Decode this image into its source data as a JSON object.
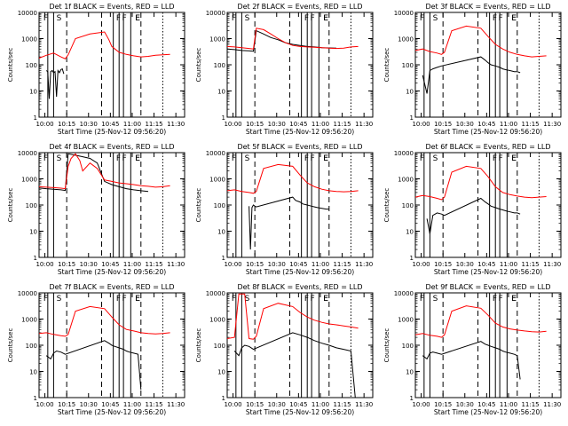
{
  "common": {
    "xlabel": "Start Time (25-Nov-12 09:56:20)",
    "ylabel": "Counts/sec",
    "x_ticks": [
      "10:00",
      "10:15",
      "10:30",
      "10:45",
      "11:00",
      "11:15",
      "11:30"
    ],
    "y_ticks": [
      "1",
      "10",
      "100",
      "1000",
      "10000"
    ],
    "colors": {
      "events": "#000000",
      "lld": "#ff0000"
    }
  },
  "chart_data": [
    {
      "type": "line",
      "title": "Det 1f BLACK = Events, RED = LLD",
      "y_scale": "log",
      "xlim_minutes": [
        0,
        100
      ],
      "ylim": [
        1,
        10000
      ],
      "marker_labels": [
        "F",
        "S",
        "E",
        "F",
        "F",
        "E"
      ],
      "series": [
        {
          "name": "Events",
          "color": "#000000",
          "x": [
            5,
            6,
            7,
            8,
            9,
            10,
            11,
            12,
            13,
            14,
            15,
            16,
            17,
            18,
            19,
            20,
            21,
            22,
            23,
            24,
            25,
            26,
            27,
            28,
            29
          ],
          "values": [
            60,
            55,
            5,
            55,
            60,
            50,
            55,
            6,
            60,
            50,
            65,
            70,
            45,
            null,
            null,
            null,
            null,
            null,
            null,
            null,
            null,
            null,
            null,
            null,
            null
          ]
        },
        {
          "name": "LLD",
          "color": "#ff0000",
          "x": [
            0,
            5,
            10,
            15,
            18,
            20,
            25,
            35,
            45,
            48,
            50,
            55,
            60,
            65,
            70,
            75,
            80,
            85,
            90
          ],
          "values": [
            180,
            230,
            280,
            200,
            170,
            240,
            1000,
            1500,
            1800,
            900,
            500,
            300,
            250,
            220,
            200,
            210,
            230,
            240,
            250
          ]
        }
      ]
    },
    {
      "type": "line",
      "title": "Det 2f BLACK = Events, RED = LLD",
      "y_scale": "log",
      "xlim_minutes": [
        0,
        100
      ],
      "ylim": [
        1,
        10000
      ],
      "marker_labels": [
        "F",
        "S",
        "E",
        "F",
        "F",
        "E"
      ],
      "series": [
        {
          "name": "Events",
          "color": "#000000",
          "x": [
            0,
            5,
            10,
            15,
            18,
            20,
            25,
            30,
            35,
            40,
            45,
            50,
            55,
            60,
            65,
            70,
            75
          ],
          "values": [
            400,
            380,
            350,
            340,
            330,
            2000,
            1500,
            1100,
            900,
            700,
            600,
            550,
            500,
            480,
            450,
            440,
            430
          ]
        },
        {
          "name": "LLD",
          "color": "#ff0000",
          "x": [
            0,
            5,
            10,
            15,
            18,
            20,
            25,
            30,
            35,
            40,
            45,
            50,
            55,
            60,
            65,
            70,
            75,
            80,
            85,
            90
          ],
          "values": [
            500,
            480,
            450,
            420,
            400,
            2500,
            2200,
            1500,
            1000,
            700,
            550,
            500,
            480,
            470,
            450,
            430,
            420,
            430,
            480,
            500
          ]
        }
      ]
    },
    {
      "type": "line",
      "title": "Det 3f BLACK = Events, RED = LLD",
      "y_scale": "log",
      "xlim_minutes": [
        0,
        100
      ],
      "ylim": [
        1,
        10000
      ],
      "marker_labels": [
        "F",
        "S",
        "E",
        "F",
        "F",
        "E"
      ],
      "series": [
        {
          "name": "Events",
          "color": "#000000",
          "x": [
            5,
            8,
            10,
            12,
            15,
            18,
            45,
            48,
            50,
            52,
            55,
            58,
            60,
            62,
            65,
            68,
            70,
            72
          ],
          "values": [
            40,
            8,
            60,
            70,
            80,
            90,
            200,
            150,
            120,
            100,
            90,
            80,
            70,
            65,
            60,
            55,
            55,
            50
          ]
        },
        {
          "name": "LLD",
          "color": "#ff0000",
          "x": [
            0,
            5,
            10,
            15,
            18,
            20,
            25,
            35,
            45,
            50,
            55,
            60,
            65,
            70,
            75,
            80,
            85,
            90
          ],
          "values": [
            350,
            400,
            320,
            280,
            250,
            300,
            2000,
            3000,
            2500,
            1200,
            600,
            400,
            300,
            250,
            220,
            200,
            210,
            220
          ]
        }
      ]
    },
    {
      "type": "line",
      "title": "Det 4f BLACK = Events, RED = LLD",
      "y_scale": "log",
      "xlim_minutes": [
        0,
        100
      ],
      "ylim": [
        1,
        10000
      ],
      "marker_labels": [
        "F",
        "S",
        "E",
        "F",
        "F",
        "E"
      ],
      "series": [
        {
          "name": "Events",
          "color": "#000000",
          "x": [
            0,
            5,
            10,
            15,
            18,
            20,
            25,
            30,
            35,
            40,
            45,
            50,
            55,
            60,
            65,
            70,
            75
          ],
          "values": [
            450,
            420,
            400,
            380,
            360,
            9000,
            8000,
            7000,
            6000,
            4000,
            800,
            600,
            500,
            420,
            380,
            350,
            330
          ]
        },
        {
          "name": "LLD",
          "color": "#ff0000",
          "x": [
            0,
            5,
            10,
            15,
            18,
            20,
            22,
            25,
            28,
            30,
            35,
            40,
            45,
            50,
            55,
            60,
            65,
            70,
            75,
            80,
            85,
            90
          ],
          "values": [
            500,
            480,
            460,
            440,
            420,
            3000,
            6000,
            9000,
            5000,
            2000,
            4000,
            2500,
            900,
            800,
            700,
            650,
            600,
            550,
            520,
            480,
            500,
            550
          ]
        }
      ]
    },
    {
      "type": "line",
      "title": "Det 5f BLACK = Events, RED = LLD",
      "y_scale": "log",
      "xlim_minutes": [
        0,
        100
      ],
      "ylim": [
        1,
        10000
      ],
      "marker_labels": [
        "F",
        "S",
        "E",
        "F",
        "F",
        "E"
      ],
      "series": [
        {
          "name": "Events",
          "color": "#000000",
          "x": [
            15,
            16,
            17,
            18,
            19,
            20,
            45,
            47,
            50,
            52,
            55,
            58,
            60,
            62,
            65,
            68,
            70
          ],
          "values": [
            90,
            2,
            80,
            100,
            90,
            85,
            200,
            150,
            130,
            110,
            100,
            90,
            85,
            80,
            75,
            70,
            70
          ]
        },
        {
          "name": "LLD",
          "color": "#ff0000",
          "x": [
            0,
            5,
            10,
            15,
            18,
            20,
            25,
            35,
            45,
            50,
            55,
            60,
            65,
            70,
            75,
            80,
            85,
            90
          ],
          "values": [
            350,
            380,
            330,
            300,
            280,
            330,
            2500,
            3500,
            3000,
            1400,
            700,
            500,
            400,
            350,
            330,
            320,
            330,
            350
          ]
        }
      ]
    },
    {
      "type": "line",
      "title": "Det 6f BLACK = Events, RED = LLD",
      "y_scale": "log",
      "xlim_minutes": [
        0,
        100
      ],
      "ylim": [
        1,
        10000
      ],
      "marker_labels": [
        "F",
        "S",
        "E",
        "F",
        "F",
        "E"
      ],
      "series": [
        {
          "name": "Events",
          "color": "#000000",
          "x": [
            8,
            10,
            12,
            15,
            18,
            20,
            45,
            48,
            50,
            52,
            55,
            58,
            60,
            62,
            65,
            68,
            70,
            72
          ],
          "values": [
            30,
            8,
            40,
            50,
            45,
            40,
            180,
            130,
            110,
            90,
            80,
            70,
            65,
            60,
            55,
            50,
            50,
            45
          ]
        },
        {
          "name": "LLD",
          "color": "#ff0000",
          "x": [
            0,
            5,
            10,
            15,
            18,
            20,
            25,
            35,
            45,
            50,
            55,
            60,
            65,
            70,
            75,
            80,
            85,
            90
          ],
          "values": [
            200,
            230,
            210,
            180,
            160,
            200,
            1800,
            3000,
            2500,
            1200,
            500,
            300,
            250,
            220,
            200,
            190,
            200,
            210
          ]
        }
      ]
    },
    {
      "type": "line",
      "title": "Det 7f BLACK = Events, RED = LLD",
      "y_scale": "log",
      "xlim_minutes": [
        0,
        100
      ],
      "ylim": [
        1,
        10000
      ],
      "marker_labels": [
        "F",
        "S",
        "E",
        "F",
        "F",
        "E"
      ],
      "series": [
        {
          "name": "Events",
          "color": "#000000",
          "x": [
            5,
            8,
            10,
            12,
            15,
            18,
            45,
            48,
            50,
            52,
            55,
            58,
            60,
            62,
            65,
            68,
            70
          ],
          "values": [
            40,
            30,
            50,
            60,
            55,
            45,
            150,
            120,
            100,
            90,
            80,
            70,
            60,
            55,
            50,
            45,
            2
          ]
        },
        {
          "name": "LLD",
          "color": "#ff0000",
          "x": [
            0,
            5,
            10,
            15,
            18,
            20,
            25,
            35,
            45,
            50,
            55,
            60,
            65,
            70,
            75,
            80,
            85,
            90
          ],
          "values": [
            280,
            300,
            260,
            230,
            220,
            260,
            2000,
            3000,
            2500,
            1200,
            600,
            400,
            350,
            300,
            280,
            270,
            280,
            300
          ]
        }
      ]
    },
    {
      "type": "line",
      "title": "Det 8f BLACK = Events, RED = LLD",
      "y_scale": "log",
      "xlim_minutes": [
        0,
        100
      ],
      "ylim": [
        1,
        10000
      ],
      "marker_labels": [
        "F",
        "S",
        "E",
        "F",
        "F",
        "E"
      ],
      "series": [
        {
          "name": "Events",
          "color": "#000000",
          "x": [
            5,
            8,
            10,
            12,
            15,
            18,
            45,
            50,
            55,
            60,
            65,
            70,
            75,
            80,
            85,
            88
          ],
          "values": [
            60,
            40,
            80,
            100,
            90,
            70,
            300,
            250,
            200,
            150,
            120,
            100,
            80,
            70,
            60,
            1
          ]
        },
        {
          "name": "LLD",
          "color": "#ff0000",
          "x": [
            0,
            5,
            8,
            10,
            12,
            15,
            18,
            20,
            25,
            35,
            45,
            50,
            55,
            60,
            65,
            70,
            75,
            80,
            85,
            90
          ],
          "values": [
            180,
            200,
            9000,
            9000,
            9000,
            180,
            170,
            220,
            2500,
            4000,
            3000,
            1800,
            1200,
            900,
            750,
            650,
            600,
            550,
            500,
            450
          ]
        }
      ]
    },
    {
      "type": "line",
      "title": "Det 9f BLACK = Events, RED = LLD",
      "y_scale": "log",
      "xlim_minutes": [
        0,
        100
      ],
      "ylim": [
        1,
        10000
      ],
      "marker_labels": [
        "F",
        "S",
        "E",
        "F",
        "F",
        "E"
      ],
      "series": [
        {
          "name": "Events",
          "color": "#000000",
          "x": [
            5,
            8,
            10,
            12,
            15,
            18,
            45,
            48,
            50,
            52,
            55,
            58,
            60,
            62,
            65,
            68,
            70,
            72
          ],
          "values": [
            40,
            30,
            50,
            55,
            50,
            45,
            140,
            110,
            100,
            90,
            80,
            70,
            60,
            55,
            50,
            45,
            40,
            5
          ]
        },
        {
          "name": "LLD",
          "color": "#ff0000",
          "x": [
            0,
            5,
            10,
            15,
            18,
            20,
            25,
            35,
            45,
            50,
            55,
            60,
            65,
            70,
            75,
            80,
            85,
            90
          ],
          "values": [
            250,
            280,
            240,
            220,
            200,
            250,
            2000,
            3200,
            2600,
            1400,
            700,
            500,
            420,
            380,
            350,
            330,
            320,
            340
          ]
        }
      ]
    }
  ]
}
